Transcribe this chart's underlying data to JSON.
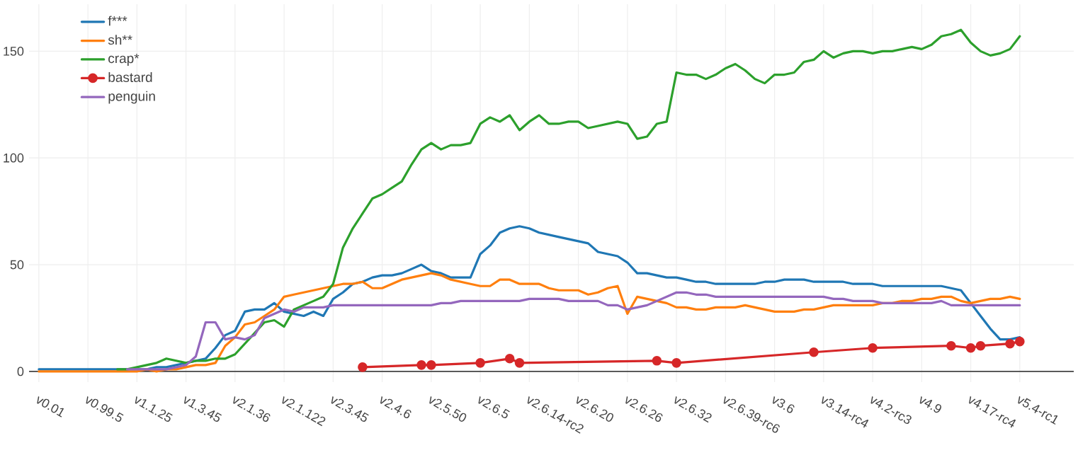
{
  "chart_data": {
    "type": "line",
    "grid": true,
    "legend": "top left",
    "marker": "none",
    "line_style": "solid",
    "ylim": [
      -5,
      172
    ],
    "yticks": [
      0,
      50,
      100,
      150
    ],
    "categories": [
      "v0.01",
      null,
      null,
      null,
      null,
      "v0.99.5",
      null,
      null,
      null,
      null,
      "v1.1.25",
      null,
      null,
      null,
      null,
      "v1.3.45",
      null,
      null,
      null,
      null,
      "v2.1.36",
      null,
      null,
      null,
      null,
      "v2.1.122",
      null,
      null,
      null,
      null,
      "v2.3.45",
      null,
      null,
      null,
      null,
      "v2.4.6",
      null,
      null,
      null,
      null,
      "v2.5.50",
      null,
      null,
      null,
      null,
      "v2.6.5",
      null,
      null,
      null,
      null,
      "v2.6.14-rc2",
      null,
      null,
      null,
      null,
      "v2.6.20",
      null,
      null,
      null,
      null,
      "v2.6.26",
      null,
      null,
      null,
      null,
      "v2.6.32",
      null,
      null,
      null,
      null,
      "v2.6.39-rc6",
      null,
      null,
      null,
      null,
      "v3.6",
      null,
      null,
      null,
      null,
      "v3.14-rc4",
      null,
      null,
      null,
      null,
      "v4.2-rc3",
      null,
      null,
      null,
      null,
      "v4.9",
      null,
      null,
      null,
      null,
      "v4.17-rc4",
      null,
      null,
      null,
      null,
      "v5.4-rc1"
    ],
    "series": [
      {
        "name": "f***",
        "color": "#1f77b4",
        "values": [
          1,
          1,
          1,
          1,
          1,
          1,
          1,
          1,
          1,
          1,
          1,
          1,
          2,
          2,
          3,
          4,
          5,
          6,
          11,
          17,
          19,
          28,
          29,
          29,
          32,
          28,
          27,
          26,
          28,
          26,
          34,
          37,
          41,
          42,
          44,
          45,
          45,
          46,
          48,
          50,
          47,
          46,
          44,
          44,
          44,
          55,
          59,
          65,
          67,
          68,
          67,
          65,
          64,
          63,
          62,
          61,
          60,
          56,
          55,
          54,
          51,
          46,
          46,
          45,
          44,
          44,
          43,
          42,
          42,
          41,
          41,
          41,
          41,
          41,
          42,
          42,
          43,
          43,
          43,
          42,
          42,
          42,
          42,
          41,
          41,
          41,
          40,
          40,
          40,
          40,
          40,
          40,
          40,
          39,
          38,
          32,
          26,
          20,
          15,
          15,
          16
        ]
      },
      {
        "name": "sh**",
        "color": "#ff7f0e",
        "values": [
          0,
          0,
          0,
          0,
          0,
          0,
          0,
          0,
          0,
          0,
          0,
          1,
          0,
          1,
          1,
          2,
          3,
          3,
          4,
          12,
          16,
          22,
          23,
          26,
          29,
          35,
          36,
          37,
          38,
          39,
          40,
          41,
          41,
          42,
          39,
          39,
          41,
          43,
          44,
          45,
          46,
          45,
          43,
          42,
          41,
          40,
          40,
          43,
          43,
          41,
          41,
          41,
          39,
          38,
          38,
          38,
          36,
          37,
          39,
          40,
          27,
          35,
          34,
          33,
          32,
          30,
          30,
          29,
          29,
          30,
          30,
          30,
          31,
          30,
          29,
          28,
          28,
          28,
          29,
          29,
          30,
          31,
          31,
          31,
          31,
          31,
          32,
          32,
          33,
          33,
          34,
          34,
          35,
          35,
          33,
          32,
          33,
          34,
          34,
          35,
          34
        ]
      },
      {
        "name": "crap*",
        "color": "#2ca02c",
        "values": [
          null,
          null,
          null,
          null,
          null,
          null,
          null,
          null,
          1,
          1,
          2,
          3,
          4,
          6,
          5,
          4,
          5,
          5,
          6,
          6,
          8,
          13,
          18,
          23,
          24,
          21,
          29,
          31,
          33,
          35,
          41,
          58,
          67,
          74,
          81,
          83,
          86,
          89,
          97,
          104,
          107,
          104,
          106,
          106,
          107,
          116,
          119,
          117,
          120,
          113,
          117,
          120,
          116,
          116,
          117,
          117,
          114,
          115,
          116,
          117,
          116,
          109,
          110,
          116,
          117,
          140,
          139,
          139,
          137,
          139,
          142,
          144,
          141,
          137,
          135,
          139,
          139,
          140,
          145,
          146,
          150,
          147,
          149,
          150,
          150,
          149,
          150,
          150,
          151,
          152,
          151,
          153,
          157,
          158,
          160,
          154,
          150,
          148,
          149,
          151,
          157
        ]
      },
      {
        "name": "bastard",
        "color": "#d62728",
        "marker": "circle",
        "values": [
          null,
          null,
          null,
          null,
          null,
          null,
          null,
          null,
          null,
          null,
          null,
          null,
          null,
          null,
          null,
          null,
          null,
          null,
          null,
          null,
          null,
          null,
          null,
          null,
          null,
          null,
          null,
          null,
          null,
          null,
          null,
          null,
          null,
          2,
          null,
          null,
          null,
          null,
          null,
          3,
          3,
          null,
          null,
          null,
          null,
          4,
          null,
          null,
          6,
          4,
          null,
          null,
          null,
          null,
          null,
          null,
          null,
          null,
          null,
          null,
          null,
          null,
          null,
          5,
          null,
          4,
          null,
          null,
          null,
          null,
          null,
          null,
          null,
          null,
          null,
          null,
          null,
          null,
          null,
          9,
          null,
          null,
          null,
          null,
          null,
          11,
          null,
          null,
          null,
          null,
          null,
          null,
          null,
          12,
          null,
          11,
          12,
          null,
          null,
          13,
          14
        ]
      },
      {
        "name": "penguin",
        "color": "#9467bd",
        "values": [
          null,
          null,
          null,
          null,
          null,
          null,
          null,
          null,
          null,
          1,
          1,
          1,
          1,
          1,
          2,
          3,
          7,
          23,
          23,
          15,
          16,
          15,
          17,
          25,
          27,
          29,
          28,
          30,
          30,
          30,
          31,
          31,
          31,
          31,
          31,
          31,
          31,
          31,
          31,
          31,
          31,
          32,
          32,
          33,
          33,
          33,
          33,
          33,
          33,
          33,
          34,
          34,
          34,
          34,
          33,
          33,
          33,
          33,
          31,
          31,
          29,
          30,
          31,
          33,
          35,
          37,
          37,
          36,
          36,
          35,
          35,
          35,
          35,
          35,
          35,
          35,
          35,
          35,
          35,
          35,
          35,
          34,
          34,
          33,
          33,
          33,
          32,
          32,
          32,
          32,
          32,
          32,
          33,
          31,
          31,
          31,
          31,
          31,
          31,
          31,
          31
        ]
      }
    ]
  }
}
